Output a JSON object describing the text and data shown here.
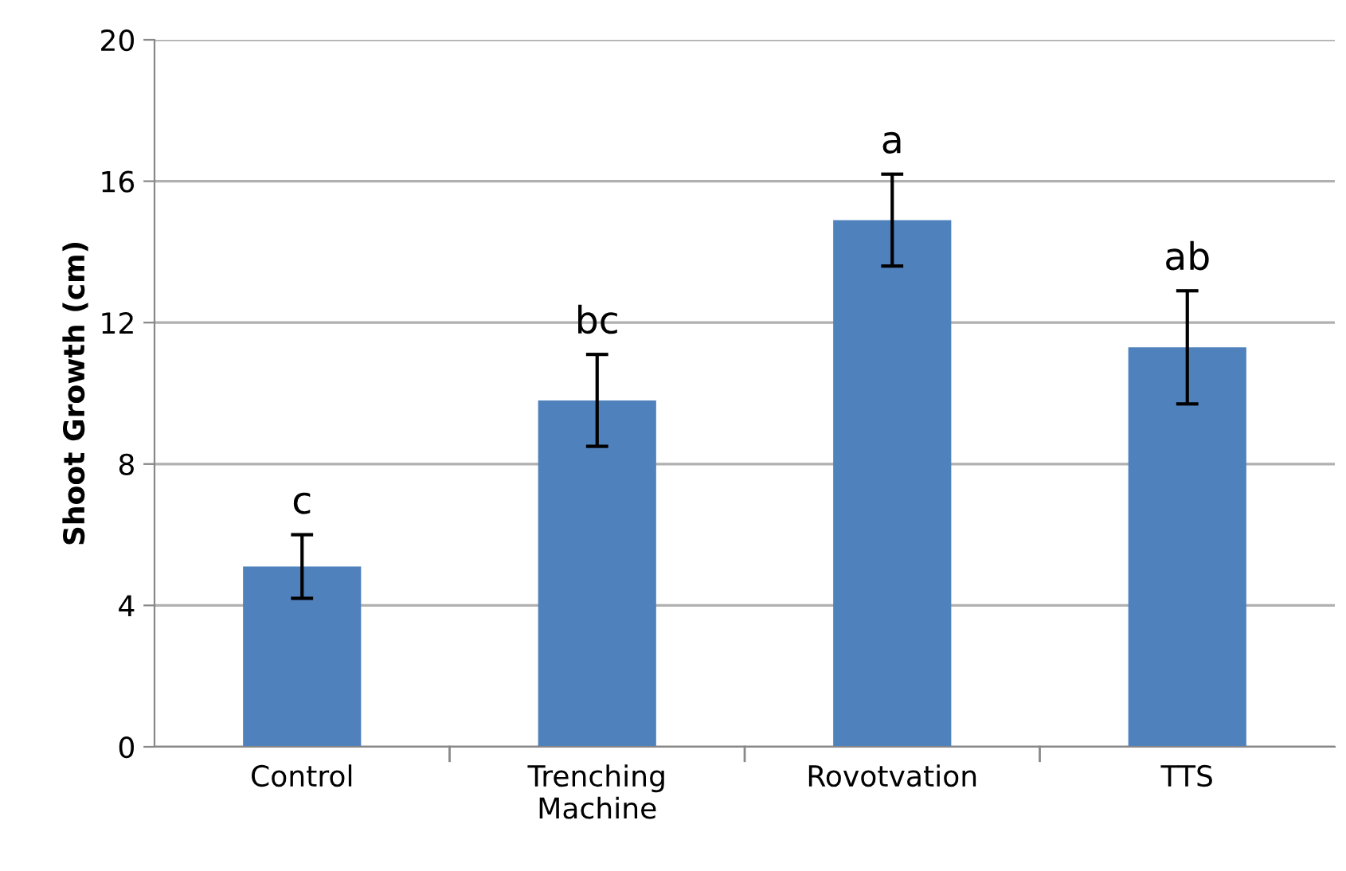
{
  "chart_data": {
    "type": "bar",
    "ylabel": "Shoot Growth (cm)",
    "categories": [
      "Control",
      "Trenching\nMachine",
      "Rovotvation",
      "TTS"
    ],
    "values": [
      5.1,
      9.8,
      14.9,
      11.3
    ],
    "errors": [
      0.9,
      1.3,
      1.3,
      1.6
    ],
    "color": "#4f81bd",
    "ylim": [
      0,
      20
    ],
    "yticks": [
      0,
      4,
      8,
      12,
      16,
      20
    ],
    "grid": "y",
    "annotations": [
      "c",
      "bc",
      "a",
      "ab"
    ]
  }
}
